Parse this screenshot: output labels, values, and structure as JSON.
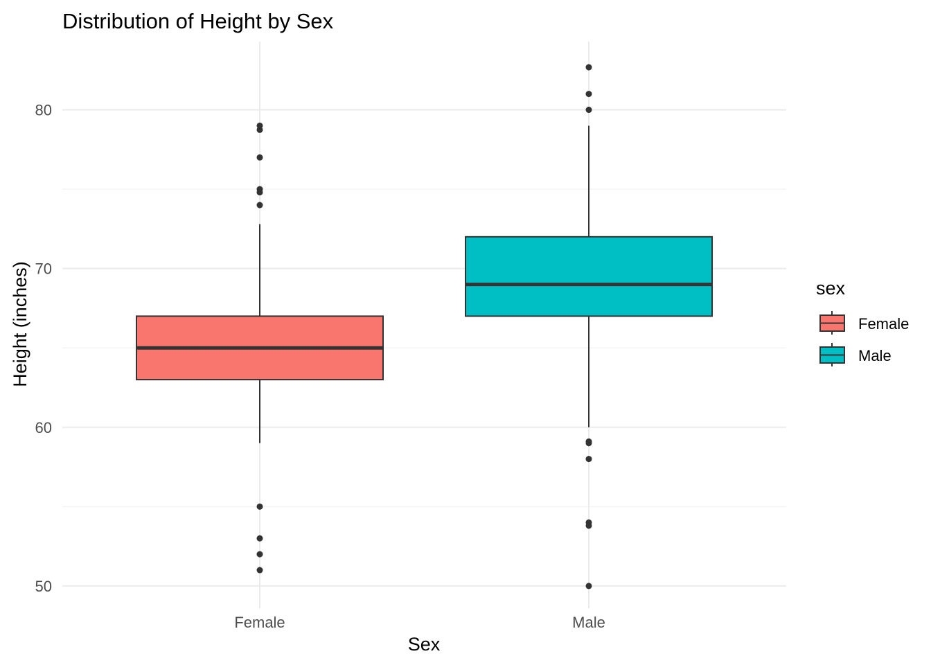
{
  "chart_data": {
    "type": "boxplot",
    "title": "Distribution of Height by Sex",
    "xlabel": "Sex",
    "ylabel": "Height (inches)",
    "categories": [
      "Female",
      "Male"
    ],
    "ylim": [
      48.6,
      84.3
    ],
    "yticks": [
      50,
      60,
      70,
      80
    ],
    "ytick_labels": [
      "50",
      "60",
      "70",
      "80"
    ],
    "grid": true,
    "legend": {
      "title": "sex",
      "position": "right",
      "entries": [
        "Female",
        "Male"
      ]
    },
    "colors": {
      "Female": "#F8766D",
      "Male": "#00BFC4",
      "outline": "#333333"
    },
    "series": [
      {
        "name": "Female",
        "whisker_low": 59,
        "q1": 63,
        "median": 65,
        "q3": 67,
        "whisker_high": 72.8,
        "outliers": [
          79,
          78.74,
          77,
          75,
          74.8,
          74,
          55,
          53,
          52,
          51
        ]
      },
      {
        "name": "Male",
        "whisker_low": 60,
        "q1": 67,
        "median": 69,
        "q3": 72,
        "whisker_high": 79,
        "outliers": [
          82.68,
          81,
          80,
          59.1,
          59,
          58,
          54,
          53.8,
          50
        ]
      }
    ]
  }
}
